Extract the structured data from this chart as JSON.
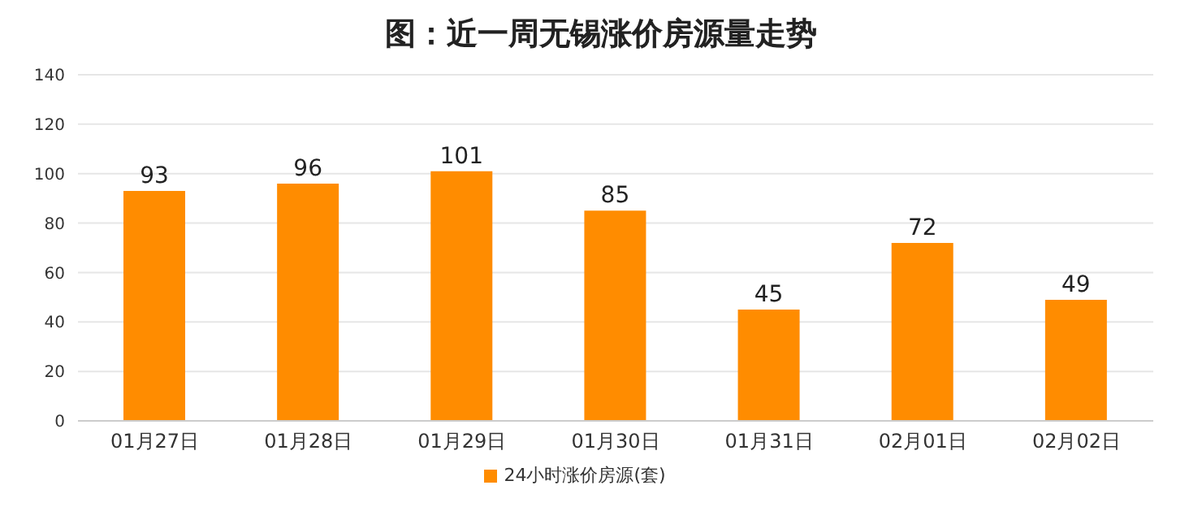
{
  "chart_data": {
    "type": "bar",
    "title": "图：近一周无锡涨价房源量走势",
    "categories": [
      "01月27日",
      "01月28日",
      "01月29日",
      "01月30日",
      "01月31日",
      "02月01日",
      "02月02日"
    ],
    "series": [
      {
        "name": "24小时涨价房源(套)",
        "color": "#ff8c00",
        "values": [
          93,
          96,
          101,
          85,
          45,
          72,
          49
        ]
      }
    ],
    "ylim": [
      0,
      140
    ],
    "yticks": [
      0,
      20,
      40,
      60,
      80,
      100,
      120,
      140
    ],
    "grid": "y",
    "legend": "bottom",
    "data_labels": true
  }
}
